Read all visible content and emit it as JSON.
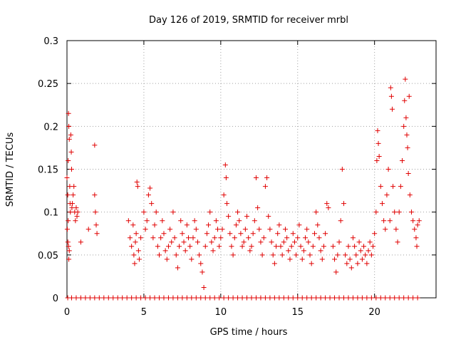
{
  "chart_data": {
    "type": "scatter",
    "title": "Day 126 of 2019, SRMTID for receiver mrbl",
    "xlabel": "GPS time / hours",
    "ylabel": "SRMTID / TECUs",
    "xlim": [
      0,
      24
    ],
    "ylim": [
      0,
      0.3
    ],
    "xticks": [
      0,
      5,
      10,
      15,
      20
    ],
    "xtick_labels": [
      "0",
      "5",
      "10",
      "15",
      "20"
    ],
    "yticks": [
      0,
      0.05,
      0.1,
      0.15,
      0.2,
      0.25,
      0.3
    ],
    "ytick_labels": [
      "0",
      "0.05",
      "0.1",
      "0.15",
      "0.2",
      "0.25",
      "0.3"
    ],
    "grid": true,
    "marker": "+",
    "color": "#e00000",
    "series": [
      {
        "name": "SRMTID",
        "points": [
          [
            0.0,
            0.14
          ],
          [
            0.05,
            0.12
          ],
          [
            0.08,
            0.16
          ],
          [
            0.1,
            0.215
          ],
          [
            0.12,
            0.2
          ],
          [
            0.15,
            0.185
          ],
          [
            0.18,
            0.13
          ],
          [
            0.2,
            0.11
          ],
          [
            0.22,
            0.1
          ],
          [
            0.25,
            0.19
          ],
          [
            0.28,
            0.17
          ],
          [
            0.3,
            0.15
          ],
          [
            0.32,
            0.105
          ],
          [
            0.35,
            0.11
          ],
          [
            0.4,
            0.12
          ],
          [
            0.45,
            0.13
          ],
          [
            0.5,
            0.1
          ],
          [
            0.55,
            0.09
          ],
          [
            0.6,
            0.105
          ],
          [
            0.65,
            0.095
          ],
          [
            0.7,
            0.1
          ],
          [
            0.02,
            0.08
          ],
          [
            0.06,
            0.065
          ],
          [
            0.1,
            0.06
          ],
          [
            0.12,
            0.045
          ],
          [
            0.15,
            0.055
          ],
          [
            0.08,
            0.09
          ],
          [
            0.9,
            0.065
          ],
          [
            1.4,
            0.08
          ],
          [
            1.8,
            0.178
          ],
          [
            1.8,
            0.12
          ],
          [
            1.85,
            0.1
          ],
          [
            1.9,
            0.085
          ],
          [
            1.95,
            0.075
          ],
          [
            4.0,
            0.09
          ],
          [
            4.1,
            0.07
          ],
          [
            4.2,
            0.06
          ],
          [
            4.3,
            0.085
          ],
          [
            4.35,
            0.05
          ],
          [
            4.4,
            0.04
          ],
          [
            4.45,
            0.065
          ],
          [
            4.5,
            0.075
          ],
          [
            4.55,
            0.135
          ],
          [
            4.6,
            0.13
          ],
          [
            4.65,
            0.055
          ],
          [
            4.7,
            0.045
          ],
          [
            4.8,
            0.07
          ],
          [
            5.0,
            0.1
          ],
          [
            5.1,
            0.08
          ],
          [
            5.2,
            0.09
          ],
          [
            5.3,
            0.12
          ],
          [
            5.4,
            0.128
          ],
          [
            5.5,
            0.11
          ],
          [
            5.6,
            0.07
          ],
          [
            5.7,
            0.085
          ],
          [
            5.8,
            0.1
          ],
          [
            5.9,
            0.06
          ],
          [
            6.0,
            0.05
          ],
          [
            6.1,
            0.07
          ],
          [
            6.2,
            0.09
          ],
          [
            6.3,
            0.075
          ],
          [
            6.4,
            0.055
          ],
          [
            6.5,
            0.045
          ],
          [
            6.6,
            0.06
          ],
          [
            6.7,
            0.08
          ],
          [
            6.8,
            0.065
          ],
          [
            6.9,
            0.1
          ],
          [
            7.0,
            0.07
          ],
          [
            7.1,
            0.05
          ],
          [
            7.2,
            0.035
          ],
          [
            7.3,
            0.06
          ],
          [
            7.4,
            0.09
          ],
          [
            7.5,
            0.075
          ],
          [
            7.6,
            0.065
          ],
          [
            7.7,
            0.055
          ],
          [
            7.8,
            0.085
          ],
          [
            7.9,
            0.07
          ],
          [
            8.0,
            0.06
          ],
          [
            8.1,
            0.045
          ],
          [
            8.2,
            0.07
          ],
          [
            8.3,
            0.09
          ],
          [
            8.4,
            0.08
          ],
          [
            8.5,
            0.065
          ],
          [
            8.6,
            0.05
          ],
          [
            8.7,
            0.04
          ],
          [
            8.8,
            0.03
          ],
          [
            8.9,
            0.012
          ],
          [
            9.0,
            0.06
          ],
          [
            9.1,
            0.075
          ],
          [
            9.2,
            0.085
          ],
          [
            9.3,
            0.1
          ],
          [
            9.4,
            0.065
          ],
          [
            9.5,
            0.055
          ],
          [
            9.6,
            0.07
          ],
          [
            9.7,
            0.09
          ],
          [
            9.8,
            0.08
          ],
          [
            9.9,
            0.06
          ],
          [
            10.0,
            0.07
          ],
          [
            10.1,
            0.08
          ],
          [
            10.2,
            0.12
          ],
          [
            10.3,
            0.155
          ],
          [
            10.35,
            0.14
          ],
          [
            10.4,
            0.11
          ],
          [
            10.5,
            0.095
          ],
          [
            10.6,
            0.075
          ],
          [
            10.7,
            0.06
          ],
          [
            10.8,
            0.05
          ],
          [
            10.9,
            0.07
          ],
          [
            11.0,
            0.085
          ],
          [
            11.1,
            0.1
          ],
          [
            11.2,
            0.09
          ],
          [
            11.3,
            0.075
          ],
          [
            11.4,
            0.06
          ],
          [
            11.5,
            0.065
          ],
          [
            11.6,
            0.08
          ],
          [
            11.7,
            0.095
          ],
          [
            11.8,
            0.07
          ],
          [
            11.9,
            0.055
          ],
          [
            12.0,
            0.06
          ],
          [
            12.1,
            0.075
          ],
          [
            12.2,
            0.09
          ],
          [
            12.3,
            0.14
          ],
          [
            12.4,
            0.105
          ],
          [
            12.5,
            0.08
          ],
          [
            12.6,
            0.065
          ],
          [
            12.7,
            0.05
          ],
          [
            12.8,
            0.07
          ],
          [
            12.9,
            0.13
          ],
          [
            13.0,
            0.14
          ],
          [
            13.1,
            0.095
          ],
          [
            13.2,
            0.08
          ],
          [
            13.3,
            0.065
          ],
          [
            13.4,
            0.05
          ],
          [
            13.5,
            0.04
          ],
          [
            13.6,
            0.06
          ],
          [
            13.7,
            0.075
          ],
          [
            13.8,
            0.085
          ],
          [
            13.9,
            0.06
          ],
          [
            14.0,
            0.05
          ],
          [
            14.1,
            0.065
          ],
          [
            14.2,
            0.08
          ],
          [
            14.3,
            0.07
          ],
          [
            14.4,
            0.055
          ],
          [
            14.5,
            0.045
          ],
          [
            14.6,
            0.06
          ],
          [
            14.7,
            0.075
          ],
          [
            14.8,
            0.065
          ],
          [
            14.9,
            0.05
          ],
          [
            15.0,
            0.07
          ],
          [
            15.1,
            0.085
          ],
          [
            15.2,
            0.06
          ],
          [
            15.3,
            0.045
          ],
          [
            15.4,
            0.055
          ],
          [
            15.5,
            0.07
          ],
          [
            15.6,
            0.08
          ],
          [
            15.7,
            0.065
          ],
          [
            15.8,
            0.05
          ],
          [
            15.9,
            0.04
          ],
          [
            16.0,
            0.06
          ],
          [
            16.1,
            0.075
          ],
          [
            16.2,
            0.1
          ],
          [
            16.3,
            0.085
          ],
          [
            16.4,
            0.07
          ],
          [
            16.5,
            0.055
          ],
          [
            16.6,
            0.045
          ],
          [
            16.7,
            0.06
          ],
          [
            16.8,
            0.075
          ],
          [
            16.9,
            0.11
          ],
          [
            17.0,
            0.105
          ],
          [
            17.3,
            0.06
          ],
          [
            17.4,
            0.045
          ],
          [
            17.5,
            0.03
          ],
          [
            17.6,
            0.05
          ],
          [
            17.7,
            0.065
          ],
          [
            17.8,
            0.09
          ],
          [
            17.9,
            0.15
          ],
          [
            18.0,
            0.11
          ],
          [
            18.1,
            0.05
          ],
          [
            18.2,
            0.04
          ],
          [
            18.3,
            0.06
          ],
          [
            18.4,
            0.045
          ],
          [
            18.5,
            0.035
          ],
          [
            18.6,
            0.07
          ],
          [
            18.7,
            0.06
          ],
          [
            18.8,
            0.05
          ],
          [
            18.9,
            0.04
          ],
          [
            19.0,
            0.065
          ],
          [
            19.1,
            0.055
          ],
          [
            19.2,
            0.045
          ],
          [
            19.3,
            0.06
          ],
          [
            19.4,
            0.05
          ],
          [
            19.5,
            0.04
          ],
          [
            19.6,
            0.055
          ],
          [
            19.7,
            0.065
          ],
          [
            19.8,
            0.05
          ],
          [
            19.9,
            0.06
          ],
          [
            20.0,
            0.075
          ],
          [
            20.1,
            0.1
          ],
          [
            20.15,
            0.16
          ],
          [
            20.2,
            0.195
          ],
          [
            20.25,
            0.18
          ],
          [
            20.3,
            0.165
          ],
          [
            20.4,
            0.13
          ],
          [
            20.5,
            0.11
          ],
          [
            20.6,
            0.09
          ],
          [
            20.7,
            0.08
          ],
          [
            20.8,
            0.12
          ],
          [
            20.9,
            0.15
          ],
          [
            21.0,
            0.09
          ],
          [
            21.05,
            0.245
          ],
          [
            21.1,
            0.235
          ],
          [
            21.15,
            0.22
          ],
          [
            21.2,
            0.13
          ],
          [
            21.3,
            0.1
          ],
          [
            21.4,
            0.08
          ],
          [
            21.5,
            0.065
          ],
          [
            21.6,
            0.1
          ],
          [
            21.7,
            0.13
          ],
          [
            21.8,
            0.16
          ],
          [
            21.9,
            0.2
          ],
          [
            21.95,
            0.23
          ],
          [
            22.0,
            0.255
          ],
          [
            22.05,
            0.21
          ],
          [
            22.1,
            0.19
          ],
          [
            22.15,
            0.175
          ],
          [
            22.2,
            0.145
          ],
          [
            22.25,
            0.235
          ],
          [
            22.3,
            0.12
          ],
          [
            22.4,
            0.1
          ],
          [
            22.5,
            0.09
          ],
          [
            22.6,
            0.08
          ],
          [
            22.7,
            0.07
          ],
          [
            22.75,
            0.06
          ],
          [
            22.8,
            0.085
          ],
          [
            22.9,
            0.09
          ],
          [
            0.05,
            0
          ],
          [
            0.3,
            0
          ],
          [
            0.6,
            0
          ],
          [
            0.9,
            0
          ],
          [
            1.2,
            0
          ],
          [
            1.5,
            0
          ],
          [
            1.8,
            0
          ],
          [
            2.1,
            0
          ],
          [
            2.4,
            0
          ],
          [
            2.7,
            0
          ],
          [
            3.0,
            0
          ],
          [
            3.3,
            0
          ],
          [
            3.6,
            0
          ],
          [
            3.9,
            0
          ],
          [
            4.2,
            0
          ],
          [
            4.5,
            0
          ],
          [
            4.8,
            0
          ],
          [
            5.1,
            0
          ],
          [
            5.4,
            0
          ],
          [
            5.7,
            0
          ],
          [
            6.0,
            0
          ],
          [
            6.3,
            0
          ],
          [
            6.6,
            0
          ],
          [
            6.9,
            0
          ],
          [
            7.2,
            0
          ],
          [
            7.5,
            0
          ],
          [
            7.8,
            0
          ],
          [
            8.1,
            0
          ],
          [
            8.4,
            0
          ],
          [
            8.7,
            0
          ],
          [
            9.0,
            0
          ],
          [
            9.3,
            0
          ],
          [
            9.6,
            0
          ],
          [
            9.9,
            0
          ],
          [
            10.2,
            0
          ],
          [
            10.5,
            0
          ],
          [
            10.8,
            0
          ],
          [
            11.1,
            0
          ],
          [
            11.4,
            0
          ],
          [
            11.7,
            0
          ],
          [
            12.0,
            0
          ],
          [
            12.3,
            0
          ],
          [
            12.6,
            0
          ],
          [
            12.9,
            0
          ],
          [
            13.2,
            0
          ],
          [
            13.5,
            0
          ],
          [
            13.8,
            0
          ],
          [
            14.1,
            0
          ],
          [
            14.4,
            0
          ],
          [
            14.7,
            0
          ],
          [
            15.0,
            0
          ],
          [
            15.3,
            0
          ],
          [
            15.6,
            0
          ],
          [
            15.9,
            0
          ],
          [
            16.2,
            0
          ],
          [
            16.5,
            0
          ],
          [
            16.8,
            0
          ],
          [
            17.1,
            0
          ],
          [
            17.4,
            0
          ],
          [
            17.7,
            0
          ],
          [
            18.0,
            0
          ],
          [
            18.3,
            0
          ],
          [
            18.6,
            0
          ],
          [
            18.9,
            0
          ],
          [
            19.2,
            0
          ],
          [
            19.5,
            0
          ],
          [
            19.8,
            0
          ],
          [
            20.1,
            0
          ],
          [
            20.4,
            0
          ],
          [
            20.7,
            0
          ],
          [
            21.0,
            0
          ],
          [
            21.3,
            0
          ],
          [
            21.6,
            0
          ],
          [
            21.9,
            0
          ],
          [
            22.2,
            0
          ],
          [
            22.5,
            0
          ],
          [
            22.8,
            0
          ]
        ]
      }
    ]
  }
}
